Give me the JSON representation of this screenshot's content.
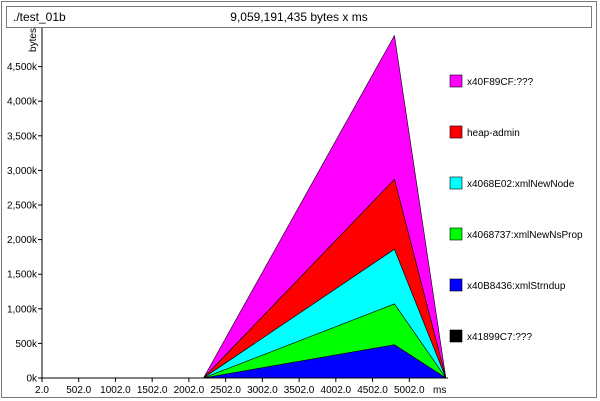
{
  "header": {
    "program": "./test_01b",
    "total": "9,059,191,435 bytes x ms"
  },
  "chart_data": {
    "type": "area",
    "stacked": true,
    "xlabel": "ms",
    "ylabel": "bytes",
    "xlim": [
      2.0,
      5502.0
    ],
    "ylim": [
      0,
      5000000
    ],
    "x_ticks": [
      "2.0",
      "502.0",
      "1002.0",
      "1502.0",
      "2002.0",
      "2502.0",
      "3002.0",
      "3502.0",
      "4002.0",
      "4502.0",
      "5002.0"
    ],
    "y_ticks": [
      "0k",
      "500k",
      "1,000k",
      "1,500k",
      "2,000k",
      "2,500k",
      "3,000k",
      "3,500k",
      "4,000k",
      "4,500k"
    ],
    "x": [
      2.0,
      2100,
      2200,
      4800,
      5500
    ],
    "series": [
      {
        "name": "x41899C7:???",
        "color": "#000000",
        "values": [
          0,
          0,
          0,
          0,
          0
        ]
      },
      {
        "name": "x40B8436:xmlStrndup",
        "color": "#0000ff",
        "values": [
          0,
          0,
          0,
          480000,
          0
        ]
      },
      {
        "name": "x4068737:xmlNewNsProp",
        "color": "#00ff00",
        "values": [
          0,
          0,
          0,
          590000,
          0
        ]
      },
      {
        "name": "x4068E02:xmlNewNode",
        "color": "#00ffff",
        "values": [
          0,
          0,
          0,
          790000,
          0
        ]
      },
      {
        "name": "heap-admin",
        "color": "#ff0000",
        "values": [
          0,
          0,
          0,
          1010000,
          0
        ]
      },
      {
        "name": "x40F89CF:???",
        "color": "#ff00ff",
        "values": [
          0,
          0,
          0,
          2080000,
          0
        ]
      }
    ],
    "legend_placement": "right",
    "legend_order": [
      "x40F89CF:???",
      "heap-admin",
      "x4068E02:xmlNewNode",
      "x4068737:xmlNewNsProp",
      "x40B8436:xmlStrndup",
      "x41899C7:???"
    ]
  }
}
